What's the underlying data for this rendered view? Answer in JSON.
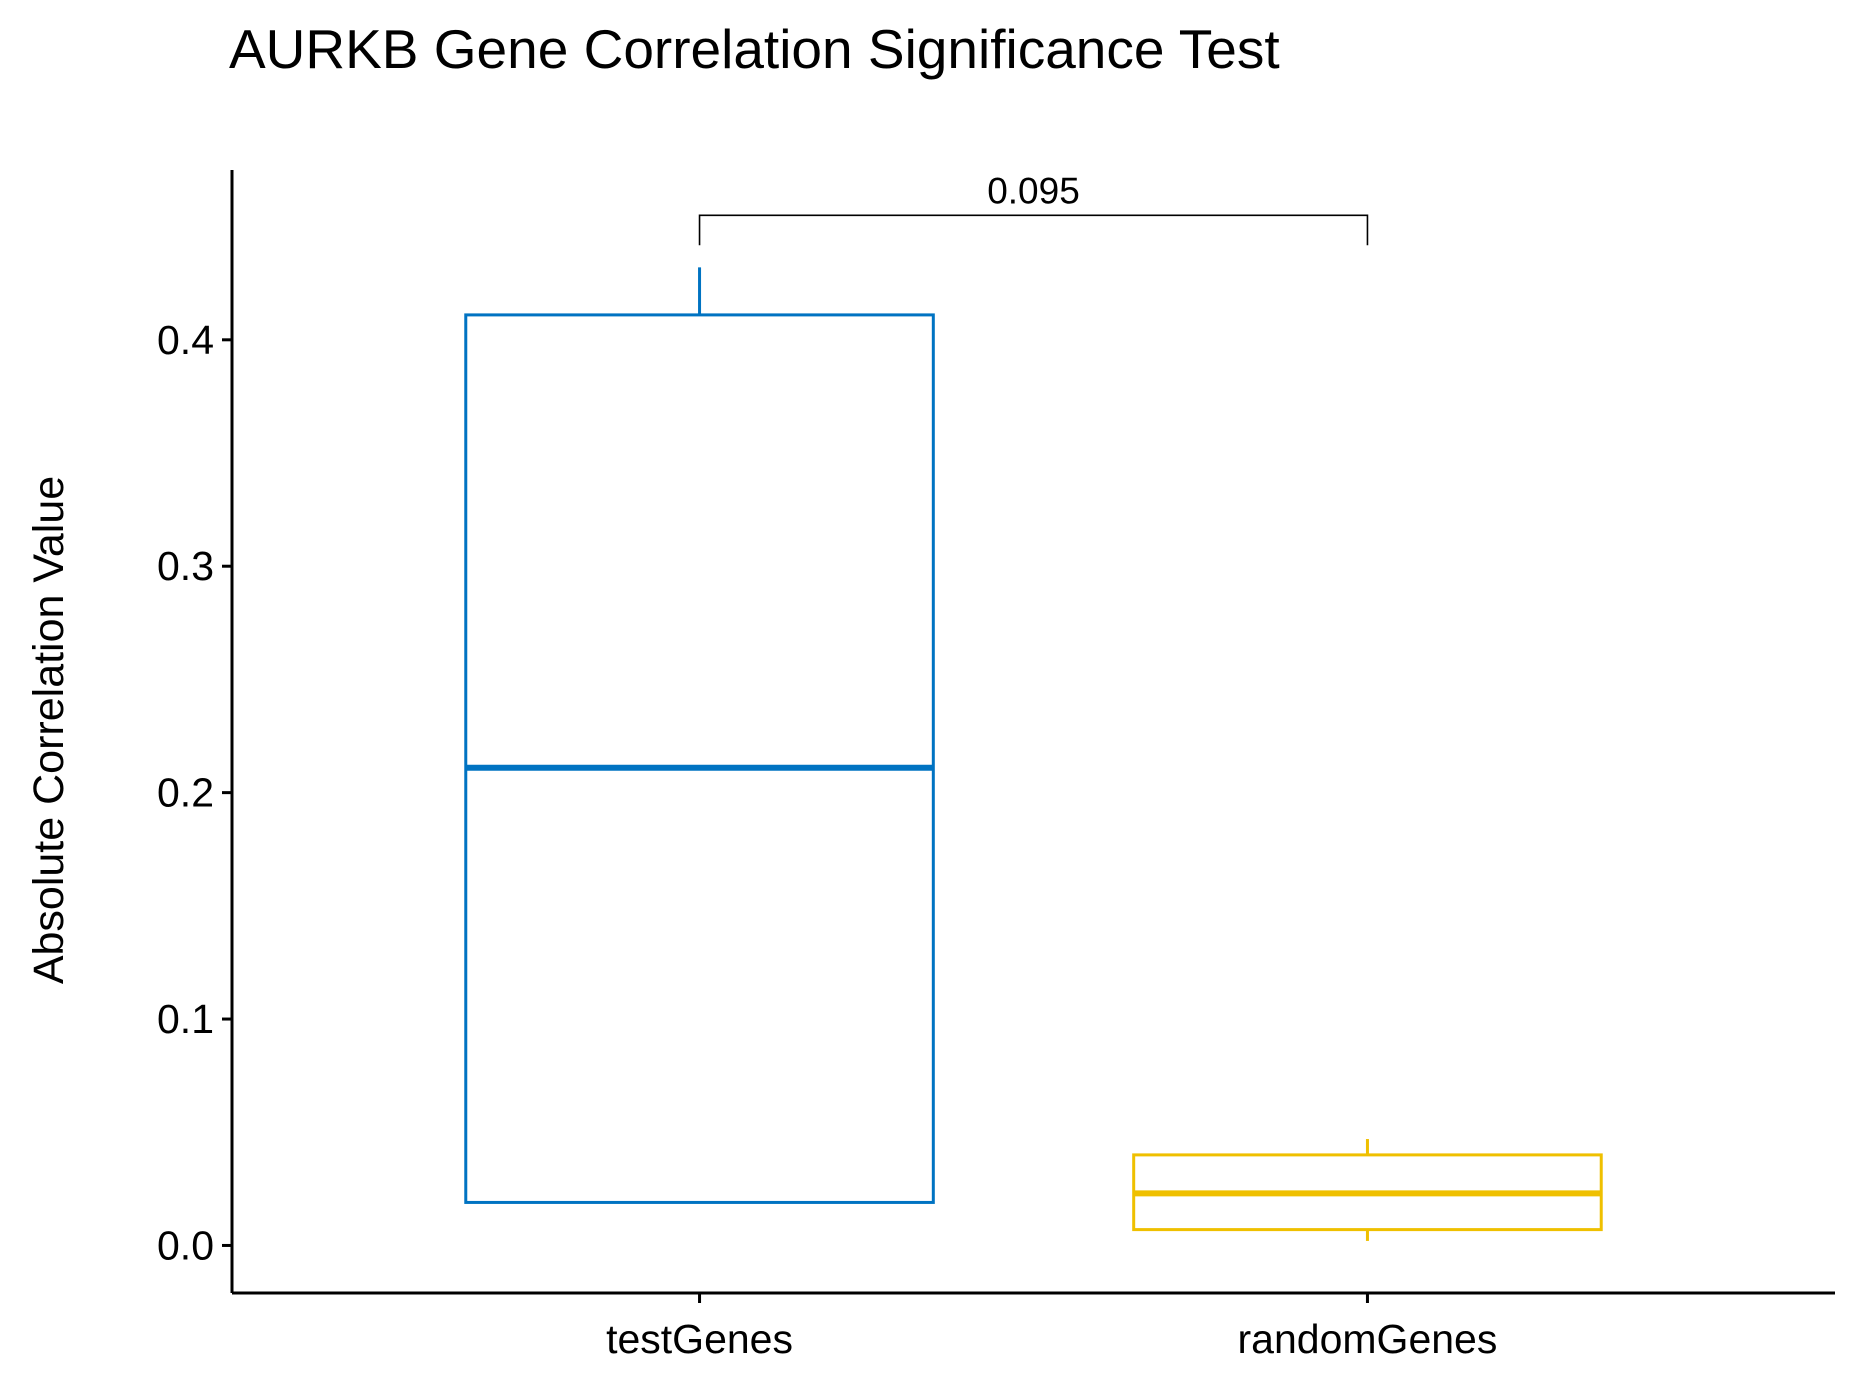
{
  "chart_data": {
    "type": "boxplot",
    "title": "AURKB Gene Correlation Significance Test",
    "xlabel": "",
    "ylabel": "Absolute Correlation Value",
    "categories": [
      "testGenes",
      "randomGenes"
    ],
    "yticks": [
      "0.0",
      "0.1",
      "0.2",
      "0.3",
      "0.4"
    ],
    "ytick_values": [
      0.0,
      0.1,
      0.2,
      0.3,
      0.4
    ],
    "ylim": [
      -0.021,
      0.475
    ],
    "grid": false,
    "legend": "none",
    "boxes": [
      {
        "category": "testGenes",
        "min": 0.019,
        "q1": 0.019,
        "median": 0.211,
        "q3": 0.411,
        "max": 0.432,
        "color": "#0073C2"
      },
      {
        "category": "randomGenes",
        "min": 0.002,
        "q1": 0.007,
        "median": 0.023,
        "q3": 0.04,
        "max": 0.047,
        "color": "#EFC000"
      }
    ],
    "comparison": {
      "groups": [
        "testGenes",
        "randomGenes"
      ],
      "label": "0.095",
      "y": 0.455
    }
  }
}
